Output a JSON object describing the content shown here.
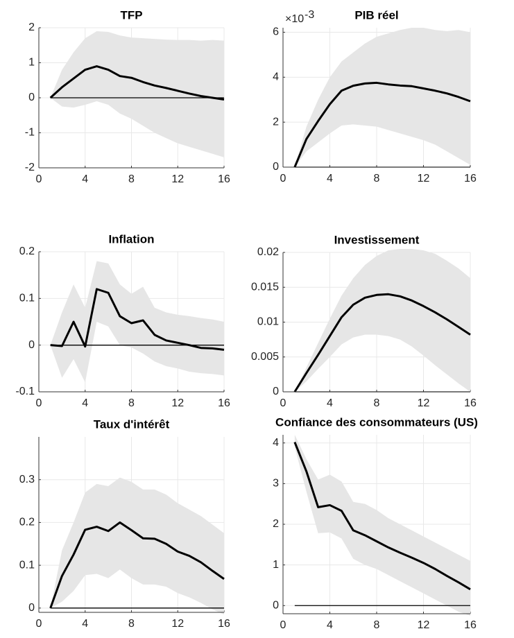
{
  "chart_data": [
    {
      "type": "line",
      "title": "TFP",
      "x": [
        1,
        2,
        3,
        4,
        5,
        6,
        7,
        8,
        9,
        10,
        11,
        12,
        13,
        14,
        15,
        16
      ],
      "series": [
        {
          "color": "#000000",
          "values": [
            0,
            0.3,
            0.55,
            0.8,
            0.9,
            0.8,
            0.62,
            0.57,
            0.45,
            0.35,
            0.28,
            0.2,
            0.12,
            0.05,
            0,
            -0.05
          ]
        }
      ],
      "band": {
        "color": "#e6e6e6",
        "upper": [
          0,
          0.8,
          1.3,
          1.7,
          1.9,
          1.88,
          1.78,
          1.72,
          1.7,
          1.68,
          1.66,
          1.65,
          1.65,
          1.63,
          1.65,
          1.63
        ],
        "lower": [
          0,
          -0.25,
          -0.28,
          -0.2,
          -0.1,
          -0.2,
          -0.45,
          -0.6,
          -0.8,
          -1,
          -1.15,
          -1.3,
          -1.4,
          -1.5,
          -1.6,
          -1.7
        ]
      },
      "hline": 0,
      "xlim": [
        0,
        16
      ],
      "xticks": [
        0,
        4,
        8,
        12,
        16
      ],
      "ylim": [
        -2,
        2
      ],
      "yticks": [
        -2,
        -1,
        0,
        1,
        2
      ],
      "grid": true
    },
    {
      "type": "line",
      "title": "PIB réel",
      "multiplier": "×10",
      "multiplier_exponent": "-3",
      "x": [
        1,
        2,
        3,
        4,
        5,
        6,
        7,
        8,
        9,
        10,
        11,
        12,
        13,
        14,
        15,
        16
      ],
      "series": [
        {
          "color": "#000000",
          "values": [
            0,
            1.25,
            2.05,
            2.8,
            3.4,
            3.62,
            3.72,
            3.75,
            3.68,
            3.63,
            3.6,
            3.5,
            3.4,
            3.28,
            3.12,
            2.93
          ]
        }
      ],
      "band": {
        "color": "#e6e6e6",
        "upper": [
          0,
          1.8,
          3,
          4,
          4.7,
          5.1,
          5.5,
          5.8,
          5.95,
          6.1,
          6.2,
          6.2,
          6.1,
          6.05,
          6.1,
          6
        ],
        "lower": [
          0,
          0.7,
          1.1,
          1.5,
          1.85,
          1.9,
          1.85,
          1.8,
          1.65,
          1.5,
          1.35,
          1.2,
          1,
          0.7,
          0.4,
          0.1
        ]
      },
      "hline": 0,
      "xlim": [
        0,
        16
      ],
      "xticks": [
        0,
        4,
        8,
        12,
        16
      ],
      "ylim": [
        0,
        6.2
      ],
      "yticks": [
        0,
        2,
        4,
        6
      ],
      "grid": true
    },
    {
      "type": "line",
      "title": "Inflation",
      "x": [
        1,
        2,
        3,
        4,
        5,
        6,
        7,
        8,
        9,
        10,
        11,
        12,
        13,
        14,
        15,
        16
      ],
      "series": [
        {
          "color": "#000000",
          "values": [
            0,
            -0.002,
            0.05,
            -0.003,
            0.12,
            0.112,
            0.062,
            0.047,
            0.053,
            0.022,
            0.01,
            0.005,
            0,
            -0.006,
            -0.007,
            -0.01
          ]
        }
      ],
      "band": {
        "color": "#e6e6e6",
        "upper": [
          0,
          0.07,
          0.13,
          0.08,
          0.18,
          0.175,
          0.13,
          0.11,
          0.125,
          0.08,
          0.07,
          0.065,
          0.062,
          0.058,
          0.055,
          0.05
        ],
        "lower": [
          0,
          -0.07,
          -0.03,
          -0.08,
          0.05,
          0.04,
          0,
          -0.005,
          -0.018,
          -0.035,
          -0.045,
          -0.05,
          -0.057,
          -0.06,
          -0.062,
          -0.065
        ]
      },
      "hline": 0,
      "xlim": [
        0,
        16
      ],
      "xticks": [
        0,
        4,
        8,
        12,
        16
      ],
      "ylim": [
        -0.1,
        0.2
      ],
      "yticks": [
        -0.1,
        0,
        0.1,
        0.2
      ],
      "grid": true
    },
    {
      "type": "line",
      "title": "Investissement",
      "x": [
        1,
        2,
        3,
        4,
        5,
        6,
        7,
        8,
        9,
        10,
        11,
        12,
        13,
        14,
        15,
        16
      ],
      "series": [
        {
          "color": "#000000",
          "values": [
            0,
            0.0027,
            0.0053,
            0.008,
            0.0107,
            0.0125,
            0.0135,
            0.0139,
            0.014,
            0.0137,
            0.0131,
            0.0123,
            0.0114,
            0.0104,
            0.0093,
            0.0082
          ]
        }
      ],
      "band": {
        "color": "#e6e6e6",
        "upper": [
          0,
          0.0035,
          0.007,
          0.0105,
          0.0138,
          0.0163,
          0.0182,
          0.0195,
          0.0203,
          0.0205,
          0.0205,
          0.0203,
          0.0198,
          0.0188,
          0.0177,
          0.0163
        ],
        "lower": [
          0,
          0.0015,
          0.0033,
          0.005,
          0.0068,
          0.0078,
          0.0082,
          0.0082,
          0.008,
          0.0075,
          0.0065,
          0.0052,
          0.0038,
          0.0025,
          0.0012,
          0
        ]
      },
      "hline": 0,
      "xlim": [
        0,
        16
      ],
      "xticks": [
        0,
        4,
        8,
        12,
        16
      ],
      "ylim": [
        0,
        0.02
      ],
      "yticks": [
        0,
        0.005,
        0.01,
        0.015,
        0.02
      ],
      "grid": true
    },
    {
      "type": "line",
      "title": "Taux d'intérêt",
      "x": [
        1,
        2,
        3,
        4,
        5,
        6,
        7,
        8,
        9,
        10,
        11,
        12,
        13,
        14,
        15,
        16
      ],
      "series": [
        {
          "color": "#000000",
          "values": [
            0,
            0.075,
            0.125,
            0.183,
            0.19,
            0.18,
            0.2,
            0.182,
            0.163,
            0.162,
            0.15,
            0.132,
            0.122,
            0.107,
            0.087,
            0.068
          ]
        }
      ],
      "band": {
        "color": "#e6e6e6",
        "upper": [
          0,
          0.135,
          0.2,
          0.27,
          0.29,
          0.285,
          0.305,
          0.295,
          0.277,
          0.277,
          0.265,
          0.245,
          0.23,
          0.215,
          0.195,
          0.175
        ],
        "lower": [
          0,
          0.015,
          0.04,
          0.077,
          0.08,
          0.07,
          0.09,
          0.07,
          0.055,
          0.055,
          0.05,
          0.035,
          0.025,
          0.012,
          -0.003,
          -0.015
        ]
      },
      "hline": 0,
      "xlim": [
        0,
        16
      ],
      "xticks": [
        0,
        4,
        8,
        12,
        16
      ],
      "ylim": [
        -0.01,
        0.4
      ],
      "yticks": [
        0,
        0.1,
        0.2,
        0.3
      ],
      "grid": true
    },
    {
      "type": "line",
      "title": "Confiance des consommateurs (US)",
      "x": [
        1,
        2,
        3,
        4,
        5,
        6,
        7,
        8,
        9,
        10,
        11,
        12,
        13,
        14,
        15,
        16
      ],
      "series": [
        {
          "color": "#000000",
          "values": [
            4.02,
            3.3,
            2.42,
            2.47,
            2.33,
            1.85,
            1.73,
            1.58,
            1.43,
            1.3,
            1.18,
            1.05,
            0.9,
            0.73,
            0.57,
            0.4
          ]
        }
      ],
      "band": {
        "color": "#e6e6e6",
        "upper": [
          4.2,
          3.6,
          3.1,
          3.22,
          3.05,
          2.55,
          2.5,
          2.35,
          2.15,
          2,
          1.85,
          1.7,
          1.55,
          1.4,
          1.25,
          1.1
        ],
        "lower": [
          3.9,
          2.8,
          1.78,
          1.8,
          1.65,
          1.15,
          1,
          0.9,
          0.75,
          0.6,
          0.45,
          0.3,
          0.15,
          0,
          -0.15,
          -0.25
        ]
      },
      "hline": 0,
      "xlim": [
        0,
        16
      ],
      "xticks": [
        0,
        4,
        8,
        12,
        16
      ],
      "ylim": [
        -0.2,
        4.2
      ],
      "yticks": [
        0,
        1,
        2,
        3,
        4
      ],
      "grid": true
    }
  ]
}
